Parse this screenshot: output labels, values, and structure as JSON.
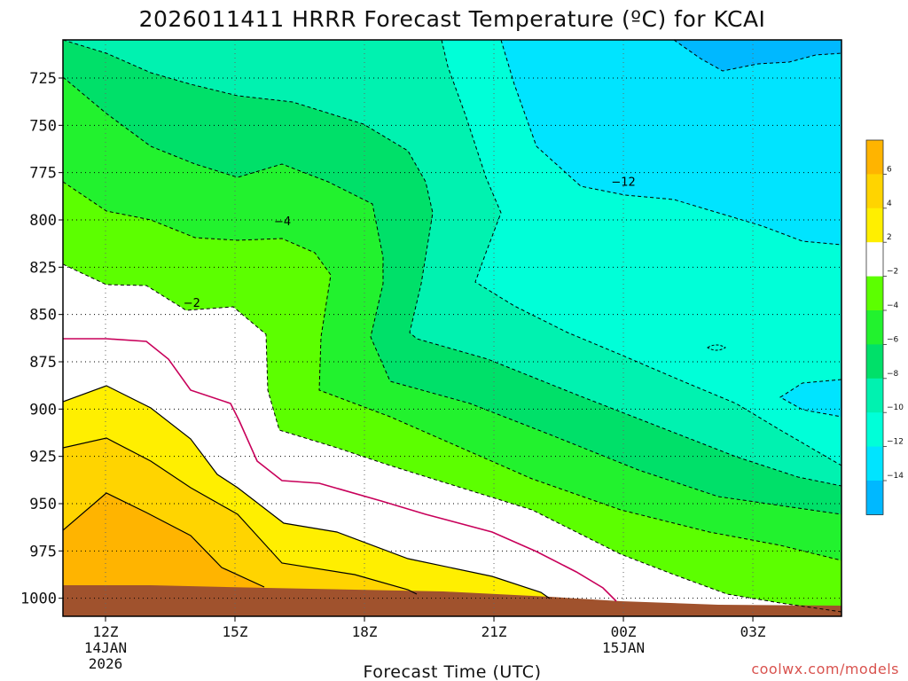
{
  "chart_data": {
    "type": "contour",
    "title": "2026011411 HRRR Forecast Temperature (ºC) for KCAI",
    "xlabel": "Forecast Time (UTC)",
    "ylabel": "",
    "y_ticks": [
      725,
      750,
      775,
      800,
      825,
      850,
      875,
      900,
      925,
      950,
      975,
      1000
    ],
    "x_ticks": [
      {
        "hour": 12,
        "label": "12Z",
        "sub1": "14JAN",
        "sub2": "2026"
      },
      {
        "hour": 15,
        "label": "15Z",
        "sub1": "",
        "sub2": ""
      },
      {
        "hour": 18,
        "label": "18Z",
        "sub1": "",
        "sub2": ""
      },
      {
        "hour": 21,
        "label": "21Z",
        "sub1": "",
        "sub2": ""
      },
      {
        "hour": 24,
        "label": "00Z",
        "sub1": "15JAN",
        "sub2": ""
      },
      {
        "hour": 27,
        "label": "03Z",
        "sub1": "",
        "sub2": ""
      }
    ],
    "colorbar": {
      "ticks": [
        "6",
        "4",
        "2",
        "−2",
        "−4",
        "−6",
        "−8",
        "−10",
        "−12",
        "−14"
      ],
      "colors": [
        "#ffb400",
        "#ffd400",
        "#ffef00",
        "#ffffff",
        "#5cff00",
        "#22f22e",
        "#00e069",
        "#00f2b0",
        "#00ffd8",
        "#00e4ff",
        "#00b8ff"
      ]
    },
    "contour_labels": [
      {
        "text": "−4",
        "hour": 16.1,
        "p": 801
      },
      {
        "text": "−2",
        "hour": 14.0,
        "p": 844
      },
      {
        "text": "−12",
        "hour": 24.0,
        "p": 780
      }
    ],
    "fill_colors": {
      "c_m14": "#00b8ff",
      "c_m12": "#00e4ff",
      "c_m10": "#00ffd8",
      "c_m8": "#00f2b0",
      "c_m6": "#00e069",
      "c_m4": "#22f22e",
      "c_m2": "#5cff00",
      "c_0": "#ffffff",
      "c_2": "#ffffff",
      "c_4": "#ffef00",
      "c_6": "#ffd400",
      "c_hot": "#ffb400",
      "ground": "#a0522d",
      "zero_line": "#c8005a"
    }
  },
  "credit": "coolwx.com/models"
}
